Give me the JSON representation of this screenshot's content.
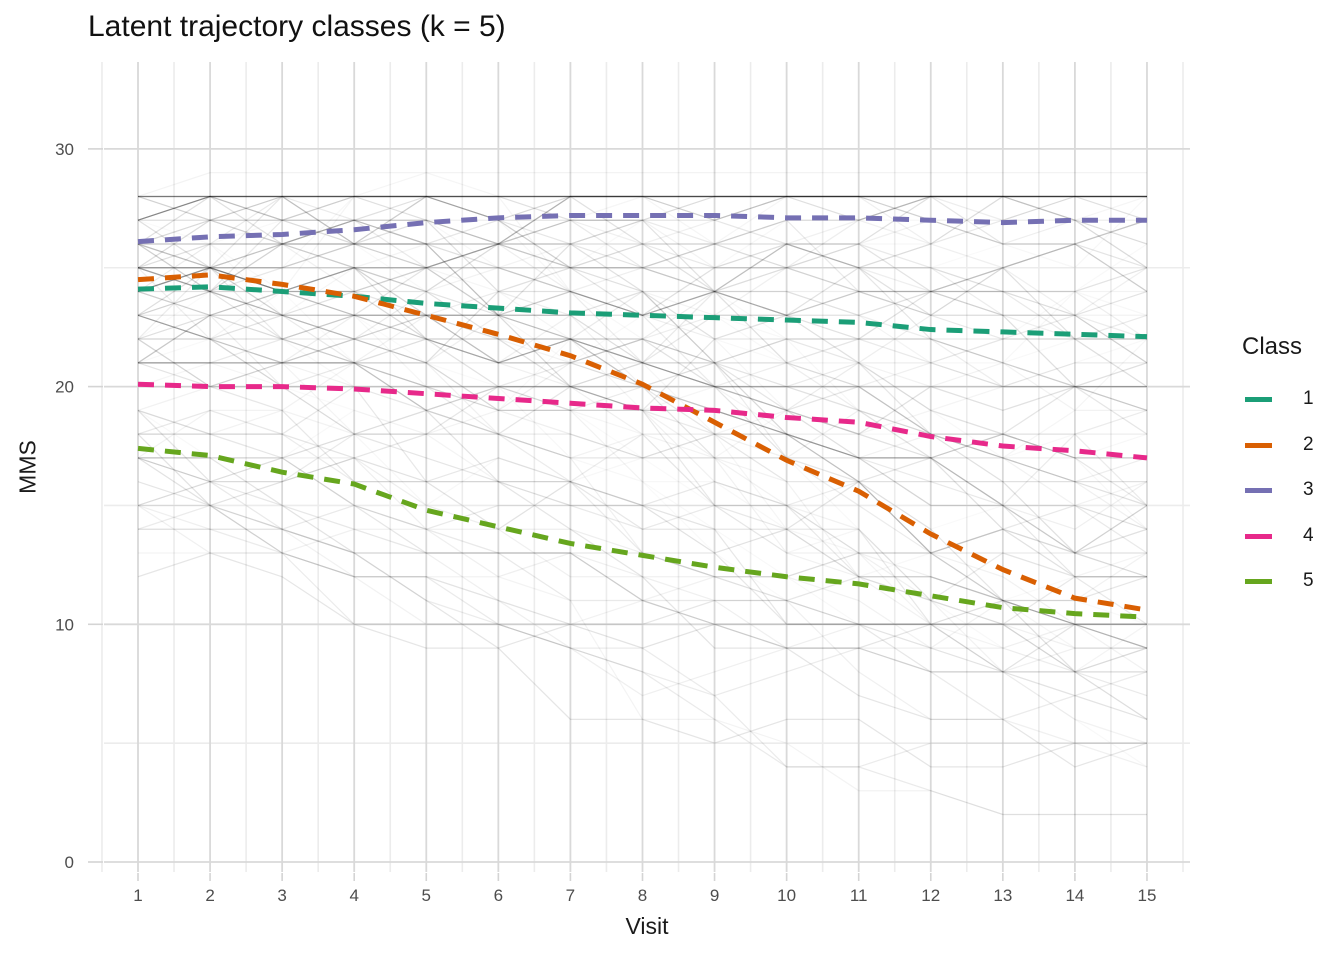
{
  "title": "Latent trajectory classes (k = 5)",
  "chart_data": {
    "type": "line",
    "title": "Latent trajectory classes (k = 5)",
    "xlabel": "Visit",
    "ylabel": "MMS",
    "x": [
      1,
      2,
      3,
      4,
      5,
      6,
      7,
      8,
      9,
      10,
      11,
      12,
      13,
      14,
      15
    ],
    "x_ticks": [
      1,
      2,
      3,
      4,
      5,
      6,
      7,
      8,
      9,
      10,
      11,
      12,
      13,
      14,
      15
    ],
    "y_ticks": [
      0,
      10,
      20,
      30
    ],
    "y_minor_ticks": [
      5,
      15,
      25
    ],
    "ylim": [
      0,
      33.6
    ],
    "grid": "on",
    "legend_title": "Class",
    "legend_position": "right",
    "line_style": "dashed",
    "series": [
      {
        "name": "1",
        "color": "#1B9E77",
        "values": [
          24.1,
          24.2,
          24.0,
          23.8,
          23.5,
          23.3,
          23.1,
          23.0,
          22.9,
          22.8,
          22.7,
          22.4,
          22.3,
          22.2,
          22.1
        ]
      },
      {
        "name": "2",
        "color": "#D95F02",
        "values": [
          24.5,
          24.7,
          24.3,
          23.8,
          23.0,
          22.2,
          21.3,
          20.1,
          18.5,
          16.9,
          15.6,
          13.8,
          12.3,
          11.1,
          10.6
        ]
      },
      {
        "name": "3",
        "color": "#7570B3",
        "values": [
          26.1,
          26.3,
          26.4,
          26.6,
          26.9,
          27.1,
          27.2,
          27.2,
          27.2,
          27.1,
          27.1,
          27.0,
          26.9,
          27.0,
          27.0
        ]
      },
      {
        "name": "4",
        "color": "#E7298A",
        "values": [
          20.1,
          20.0,
          20.0,
          19.9,
          19.7,
          19.5,
          19.3,
          19.1,
          19.0,
          18.7,
          18.5,
          17.9,
          17.5,
          17.3,
          17.0
        ]
      },
      {
        "name": "5",
        "color": "#66A61E",
        "values": [
          17.4,
          17.1,
          16.4,
          15.9,
          14.8,
          14.1,
          13.4,
          12.9,
          12.4,
          12.0,
          11.7,
          11.2,
          10.7,
          10.45,
          10.3
        ]
      }
    ],
    "background_trajectories": {
      "description": "faint gray individual-subject MMS trajectories at integer values, one per subject, clustered around class means",
      "count": 130,
      "class_counts": [
        30,
        24,
        26,
        28,
        22
      ],
      "value_min": 2,
      "value_max": 28,
      "color": "#000000"
    },
    "colors": {
      "grid_major": "#D9D9D9",
      "grid_minor": "#ECECEC",
      "tick_mark": "#D4D4D4",
      "tick_text": "#4D4D4D",
      "title_text": "#111111"
    }
  }
}
